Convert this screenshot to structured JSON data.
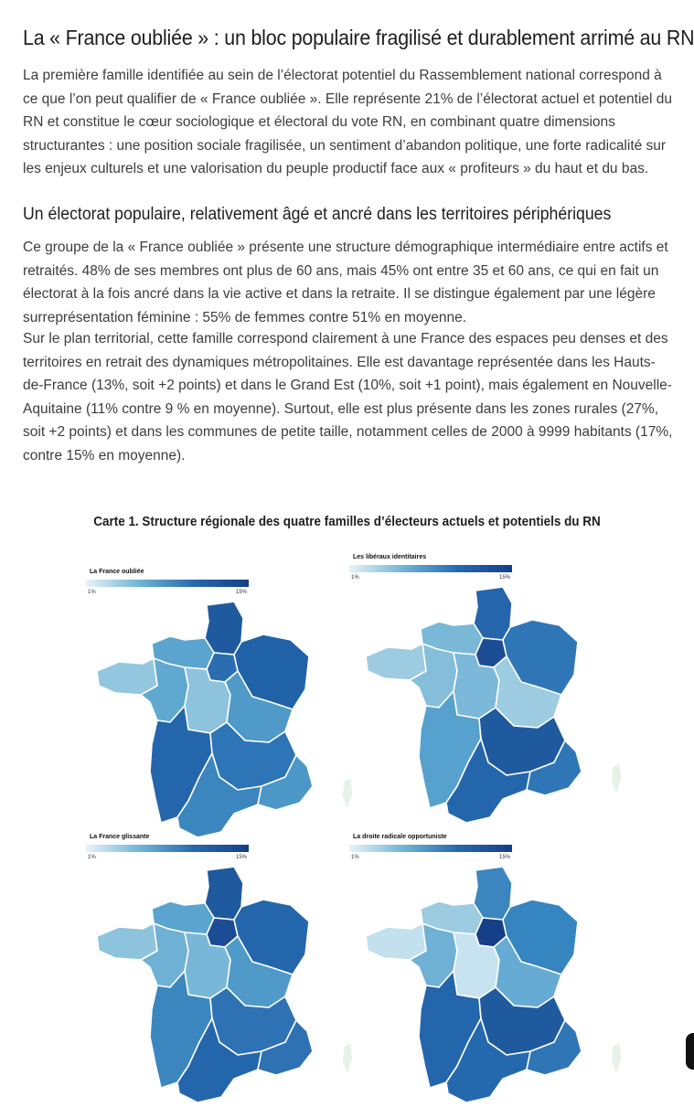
{
  "article": {
    "title": "La « France oubliée » : un bloc populaire fragilisé et durablement arrimé au RN",
    "intro": "La première famille identifiée au sein de l’électorat potentiel du Rassemblement national correspond à ce que l’on peut qualifier de « France oubliée ». Elle représente 21% de l’électorat actuel et potentiel du RN et constitue le cœur sociologique et électoral du vote RN, en combinant quatre dimensions structurantes : une position sociale fragilisée, un sentiment d’abandon politique, une forte radicalité sur les enjeux culturels et une valorisation du peuple productif face aux « profiteurs » du haut et du bas.",
    "subtitle": "Un électorat populaire, relativement âgé et ancré dans les territoires périphériques",
    "paragraph_2": "Ce groupe de la « France oubliée » présente une structure démographique intermédiaire entre actifs et retraités. 48% de ses membres ont plus de 60 ans, mais 45% ont entre 35 et 60 ans, ce qui en fait un électorat à la fois ancré dans la vie active et dans la retraite. Il se distingue également par une légère surreprésentation féminine : 55% de femmes contre 51% en moyenne.",
    "paragraph_3": "Sur le plan territorial, cette famille correspond clairement à une France des espaces peu denses et des territoires en retrait des dynamiques métropolitaines. Elle est davantage représentée dans les Hauts-de-France (13%, soit +2 points) et dans le Grand Est (10%, soit +1 point), mais également en Nouvelle-Aquitaine (11% contre 9 % en moyenne). Surtout, elle est plus présente dans les zones rurales (27%, soit +2 points) et dans les communes de petite taille, notamment celles de 2000 à 9999 habitants (17%, contre 15% en moyenne)."
  },
  "figure": {
    "title": "Carte 1. Structure régionale des quatre familles d’électeurs actuels et potentiels du RN",
    "legend_min": "1%",
    "legend_max": "15%",
    "scale_colors": [
      "#e8f3f8",
      "#6fb4d6",
      "#2769ae",
      "#143f88"
    ],
    "maps": [
      {
        "label": "La France oubliée",
        "regions": {
          "hdf": "#1f5a9e",
          "idf": "#2a6db0",
          "ge": "#1f62a8",
          "nor": "#5aa4cf",
          "bre": "#93c7e0",
          "pdl": "#5fa8d0",
          "cvl": "#8ec3de",
          "bfc": "#4f9ac9",
          "na": "#2466ab",
          "ara": "#2d75b6",
          "occ": "#3b86bf",
          "paca": "#4b97c8",
          "cor": "#e6f1ea"
        }
      },
      {
        "label": "Les libéraux identitaires",
        "regions": {
          "hdf": "#2565ab",
          "idf": "#1c4d94",
          "ge": "#2f76b6",
          "nor": "#7ab8d8",
          "bre": "#9ccbe2",
          "pdl": "#84bedb",
          "cvl": "#7bb8d9",
          "bfc": "#9ccbe2",
          "na": "#56a1cd",
          "ara": "#1f5a9e",
          "occ": "#2466ab",
          "paca": "#2f76b6",
          "cor": "#e6f1ea"
        }
      },
      {
        "label": "La France glissante",
        "regions": {
          "hdf": "#1f5a9e",
          "idf": "#1c4d94",
          "ge": "#2466ab",
          "nor": "#5aa4cf",
          "bre": "#8ec3de",
          "pdl": "#6fb0d5",
          "cvl": "#79b7d8",
          "bfc": "#4f9ac9",
          "na": "#3b86bf",
          "ara": "#2e72b3",
          "occ": "#2466ab",
          "paca": "#2e72b3",
          "cor": "#e6f1ea"
        }
      },
      {
        "label": "La droite radicale opportuniste",
        "regions": {
          "hdf": "#3b86bf",
          "idf": "#153f88",
          "ge": "#3585c0",
          "nor": "#9ccbe2",
          "bre": "#c2e0ee",
          "pdl": "#6fb0d5",
          "cvl": "#c7e3ef",
          "bfc": "#66abd3",
          "na": "#2466ab",
          "ara": "#1f5a9e",
          "occ": "#2469ae",
          "paca": "#2f76b6",
          "cor": "#e6f1ea"
        }
      }
    ]
  }
}
